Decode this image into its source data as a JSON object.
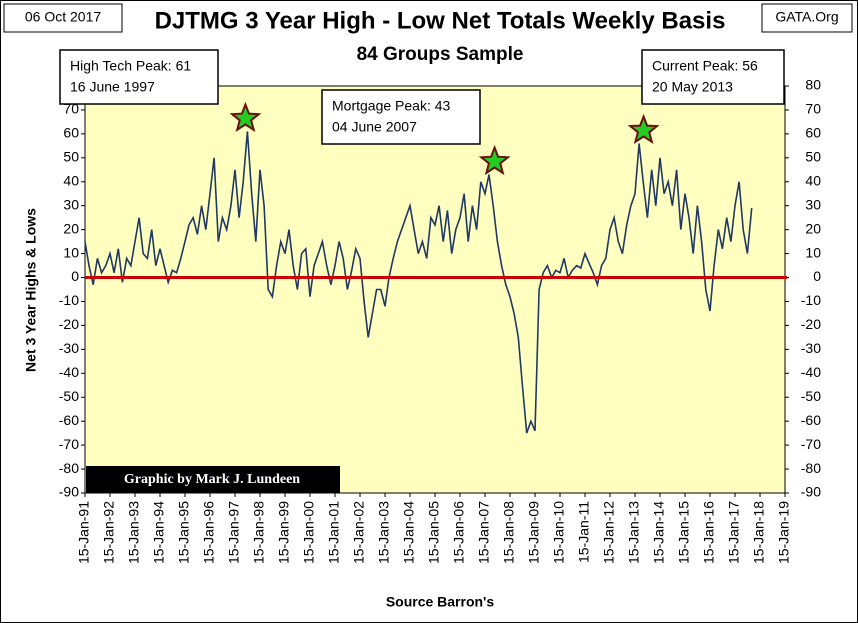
{
  "chart_data": {
    "type": "line",
    "title": "DJTMG 3 Year High - Low Net Totals Weekly Basis",
    "subtitle": "84 Groups Sample",
    "y_label": "Net 3 Year Highs & Lows",
    "x_label": "Source Barron's",
    "annotations": [
      "06 Oct 2017",
      "GATA.Org",
      "High Tech Peak: 61",
      "16 June 1997",
      "Mortgage Peak: 43",
      "04 June 2007",
      "Current Peak: 56",
      "20 May 2013",
      "Graphic by Mark J. Lundeen"
    ],
    "peaks": [
      {
        "date": "1997-06-16",
        "value": 61
      },
      {
        "date": "2007-06-04",
        "value": 43
      },
      {
        "date": "2013-05-20",
        "value": 56
      }
    ],
    "peak_color": "#22cc22",
    "reference_line": {
      "value": 0,
      "color": "#cc0000"
    },
    "grid": false,
    "xlim": [
      "1991-01-15",
      "2019-01-15"
    ],
    "xticks": [
      {
        "value": "1991-01-15",
        "label": "15-Jan-91"
      },
      {
        "value": "1992-01-15",
        "label": "15-Jan-92"
      },
      {
        "value": "1993-01-15",
        "label": "15-Jan-93"
      },
      {
        "value": "1994-01-15",
        "label": "15-Jan-94"
      },
      {
        "value": "1995-01-15",
        "label": "15-Jan-95"
      },
      {
        "value": "1996-01-15",
        "label": "15-Jan-96"
      },
      {
        "value": "1997-01-15",
        "label": "15-Jan-97"
      },
      {
        "value": "1998-01-15",
        "label": "15-Jan-98"
      },
      {
        "value": "1999-01-15",
        "label": "15-Jan-99"
      },
      {
        "value": "2000-01-15",
        "label": "15-Jan-00"
      },
      {
        "value": "2001-01-15",
        "label": "15-Jan-01"
      },
      {
        "value": "2002-01-15",
        "label": "15-Jan-02"
      },
      {
        "value": "2003-01-15",
        "label": "15-Jan-03"
      },
      {
        "value": "2004-01-15",
        "label": "15-Jan-04"
      },
      {
        "value": "2005-01-15",
        "label": "15-Jan-05"
      },
      {
        "value": "2006-01-15",
        "label": "15-Jan-06"
      },
      {
        "value": "2007-01-15",
        "label": "15-Jan-07"
      },
      {
        "value": "2008-01-15",
        "label": "15-Jan-08"
      },
      {
        "value": "2009-01-15",
        "label": "15-Jan-09"
      },
      {
        "value": "2010-01-15",
        "label": "15-Jan-10"
      },
      {
        "value": "2011-01-15",
        "label": "15-Jan-11"
      },
      {
        "value": "2012-01-15",
        "label": "15-Jan-12"
      },
      {
        "value": "2013-01-15",
        "label": "15-Jan-13"
      },
      {
        "value": "2014-01-15",
        "label": "15-Jan-14"
      },
      {
        "value": "2015-01-15",
        "label": "15-Jan-15"
      },
      {
        "value": "2016-01-15",
        "label": "15-Jan-16"
      },
      {
        "value": "2017-01-15",
        "label": "15-Jan-17"
      },
      {
        "value": "2018-01-15",
        "label": "15-Jan-18"
      },
      {
        "value": "2019-01-15",
        "label": "15-Jan-19"
      }
    ],
    "ylim": [
      -90,
      80
    ],
    "yticks": [
      -90,
      -80,
      -70,
      -60,
      -50,
      -40,
      -30,
      -20,
      -10,
      0,
      10,
      20,
      30,
      40,
      50,
      60,
      70,
      80
    ],
    "y2lim": [
      -90,
      80
    ],
    "y2ticks": [
      -90,
      -80,
      -70,
      -60,
      -50,
      -40,
      -30,
      -20,
      -10,
      0,
      10,
      20,
      30,
      40,
      50,
      60,
      70,
      80
    ],
    "x": [
      "1991-01-15",
      "1991-03-15",
      "1991-05-15",
      "1991-07-15",
      "1991-09-15",
      "1991-11-15",
      "1992-01-15",
      "1992-03-15",
      "1992-05-15",
      "1992-07-15",
      "1992-09-15",
      "1992-11-15",
      "1993-01-15",
      "1993-03-15",
      "1993-05-15",
      "1993-07-15",
      "1993-09-15",
      "1993-11-15",
      "1994-01-15",
      "1994-03-15",
      "1994-05-15",
      "1994-07-15",
      "1994-09-15",
      "1994-11-15",
      "1995-01-15",
      "1995-03-15",
      "1995-05-15",
      "1995-07-15",
      "1995-09-15",
      "1995-11-15",
      "1996-01-15",
      "1996-03-15",
      "1996-05-15",
      "1996-07-15",
      "1996-09-15",
      "1996-11-15",
      "1997-01-15",
      "1997-03-15",
      "1997-05-15",
      "1997-07-15",
      "1997-09-15",
      "1997-11-15",
      "1998-01-15",
      "1998-03-15",
      "1998-05-15",
      "1998-07-15",
      "1998-09-15",
      "1998-11-15",
      "1999-01-15",
      "1999-03-15",
      "1999-05-15",
      "1999-07-15",
      "1999-09-15",
      "1999-11-15",
      "2000-01-15",
      "2000-03-15",
      "2000-05-15",
      "2000-07-15",
      "2000-09-15",
      "2000-11-15",
      "2001-01-15",
      "2001-03-15",
      "2001-05-15",
      "2001-07-15",
      "2001-09-15",
      "2001-11-15",
      "2002-01-15",
      "2002-03-15",
      "2002-05-15",
      "2002-07-15",
      "2002-09-15",
      "2002-11-15",
      "2003-01-15",
      "2003-03-15",
      "2003-05-15",
      "2003-07-15",
      "2003-09-15",
      "2003-11-15",
      "2004-01-15",
      "2004-03-15",
      "2004-05-15",
      "2004-07-15",
      "2004-09-15",
      "2004-11-15",
      "2005-01-15",
      "2005-03-15",
      "2005-05-15",
      "2005-07-15",
      "2005-09-15",
      "2005-11-15",
      "2006-01-15",
      "2006-03-15",
      "2006-05-15",
      "2006-07-15",
      "2006-09-15",
      "2006-11-15",
      "2007-01-15",
      "2007-03-15",
      "2007-05-15",
      "2007-07-15",
      "2007-09-15",
      "2007-11-15",
      "2008-01-15",
      "2008-03-15",
      "2008-05-15",
      "2008-07-15",
      "2008-09-15",
      "2008-11-15",
      "2009-01-15",
      "2009-03-15",
      "2009-05-15",
      "2009-07-15",
      "2009-09-15",
      "2009-11-15",
      "2010-01-15",
      "2010-03-15",
      "2010-05-15",
      "2010-07-15",
      "2010-09-15",
      "2010-11-15",
      "2011-01-15",
      "2011-03-15",
      "2011-05-15",
      "2011-07-15",
      "2011-09-15",
      "2011-11-15",
      "2012-01-15",
      "2012-03-15",
      "2012-05-15",
      "2012-07-15",
      "2012-09-15",
      "2012-11-15",
      "2013-01-15",
      "2013-03-15",
      "2013-05-15",
      "2013-07-15",
      "2013-09-15",
      "2013-11-15",
      "2014-01-15",
      "2014-03-15",
      "2014-05-15",
      "2014-07-15",
      "2014-09-15",
      "2014-11-15",
      "2015-01-15",
      "2015-03-15",
      "2015-05-15",
      "2015-07-15",
      "2015-09-15",
      "2015-11-15",
      "2016-01-15",
      "2016-03-15",
      "2016-05-15",
      "2016-07-15",
      "2016-09-15",
      "2016-11-15",
      "2017-01-15",
      "2017-03-15",
      "2017-05-15",
      "2017-07-15",
      "2017-09-15"
    ],
    "series": [
      {
        "name": "Net 3 Year Highs & Lows",
        "color": "#1f3864",
        "values": [
          15,
          5,
          -3,
          8,
          2,
          5,
          10,
          2,
          12,
          -2,
          8,
          5,
          15,
          25,
          10,
          8,
          20,
          5,
          12,
          5,
          -2,
          3,
          2,
          8,
          15,
          22,
          25,
          18,
          30,
          20,
          35,
          50,
          15,
          25,
          20,
          30,
          45,
          25,
          40,
          61,
          35,
          15,
          45,
          30,
          -5,
          -8,
          5,
          15,
          10,
          20,
          5,
          -5,
          10,
          12,
          -8,
          5,
          10,
          15,
          5,
          -3,
          5,
          15,
          8,
          -5,
          3,
          12,
          8,
          -10,
          -25,
          -15,
          -5,
          -5,
          -12,
          0,
          8,
          15,
          20,
          25,
          30,
          20,
          10,
          15,
          8,
          25,
          22,
          30,
          15,
          28,
          10,
          20,
          25,
          35,
          15,
          30,
          20,
          40,
          35,
          43,
          30,
          15,
          5,
          -3,
          -8,
          -15,
          -25,
          -45,
          -65,
          -60,
          -64,
          -5,
          2,
          5,
          0,
          3,
          2,
          8,
          0,
          3,
          5,
          4,
          10,
          6,
          2,
          -3,
          5,
          8,
          20,
          25,
          15,
          10,
          22,
          30,
          35,
          56,
          40,
          25,
          45,
          30,
          50,
          35,
          40,
          30,
          45,
          20,
          35,
          25,
          10,
          30,
          15,
          -5,
          -14,
          5,
          20,
          12,
          25,
          15,
          30,
          40,
          20,
          10,
          29
        ]
      }
    ]
  }
}
